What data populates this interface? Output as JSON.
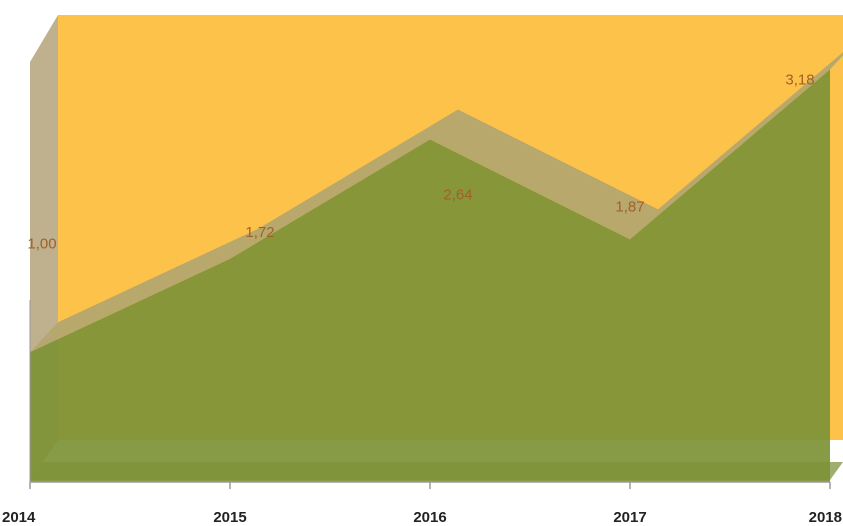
{
  "chart_data": {
    "type": "area",
    "categories": [
      "2014",
      "2015",
      "2016",
      "2017",
      "2018"
    ],
    "values": [
      1.0,
      1.72,
      2.64,
      1.87,
      3.18
    ],
    "data_labels": [
      "1,00",
      "1,72",
      "2,64",
      "1,87",
      "3,18"
    ],
    "ylim": [
      0,
      3.6
    ],
    "grid": false,
    "legend": "none",
    "three_d": true,
    "colors": {
      "back_wall": "#fcc24a",
      "side_wall": "#b5a37a",
      "area_front": "#7d9336",
      "area_top": "#b4a76e",
      "floor": "#9fae6e",
      "axis": "#9a9a9a",
      "tick_text": "#222222",
      "data_label": "#a0602a"
    }
  }
}
